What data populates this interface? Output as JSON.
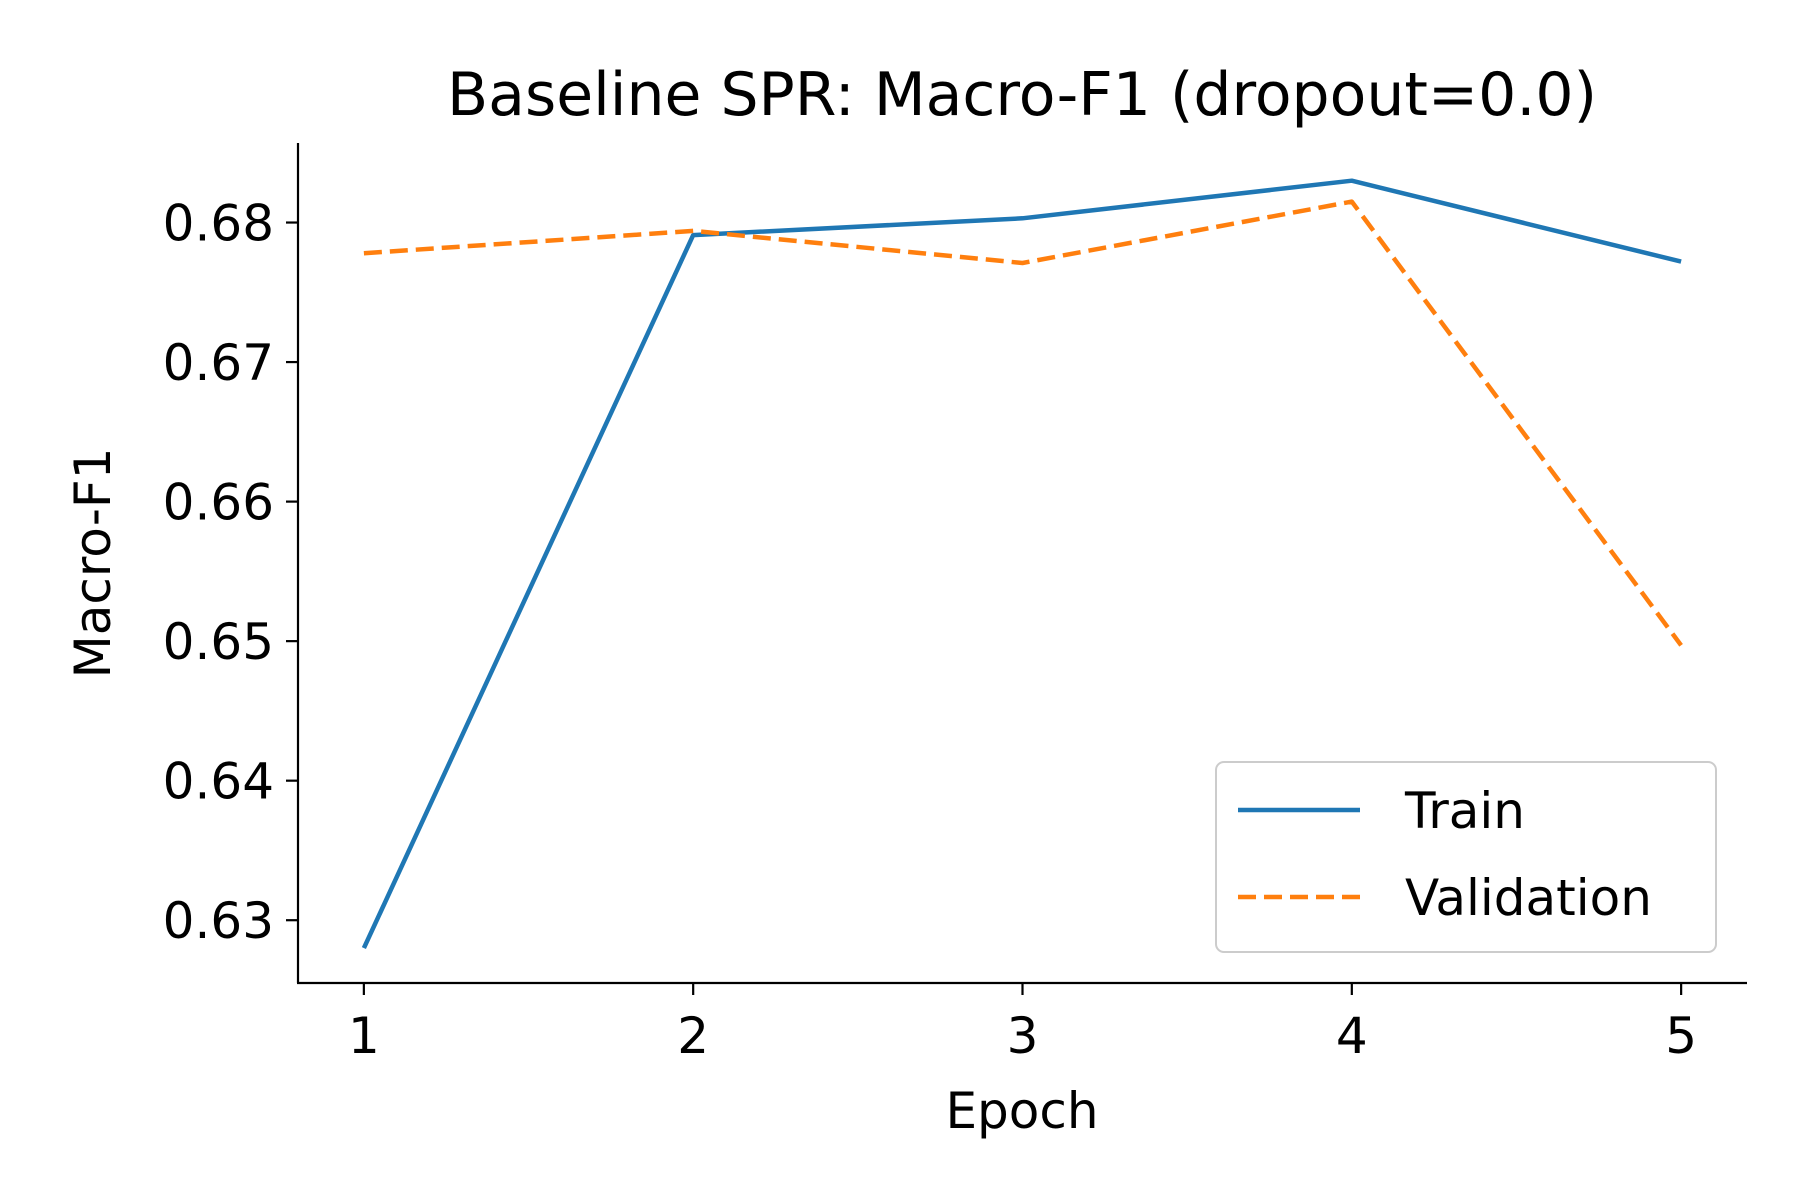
{
  "chart_data": {
    "type": "line",
    "title": "Baseline SPR: Macro-F1 (dropout=0.0)",
    "xlabel": "Epoch",
    "ylabel": "Macro-F1",
    "x": [
      1,
      2,
      3,
      4,
      5
    ],
    "xlim": [
      0.8,
      5.2
    ],
    "ylim": [
      0.6255,
      0.6857
    ],
    "xticks": [
      1,
      2,
      3,
      4,
      5
    ],
    "yticks": [
      0.63,
      0.64,
      0.65,
      0.66,
      0.67,
      0.68
    ],
    "ytick_labels": [
      "0.63",
      "0.64",
      "0.65",
      "0.66",
      "0.67",
      "0.68"
    ],
    "grid": false,
    "legend_position": "lower right",
    "series": [
      {
        "name": "Train",
        "values": [
          0.628,
          0.6791,
          0.6803,
          0.683,
          0.6772
        ],
        "color": "#1f77b4",
        "style": "solid"
      },
      {
        "name": "Validation",
        "values": [
          0.6778,
          0.6794,
          0.6771,
          0.6815,
          0.6497
        ],
        "color": "#ff7f0e",
        "style": "dashed"
      }
    ]
  }
}
